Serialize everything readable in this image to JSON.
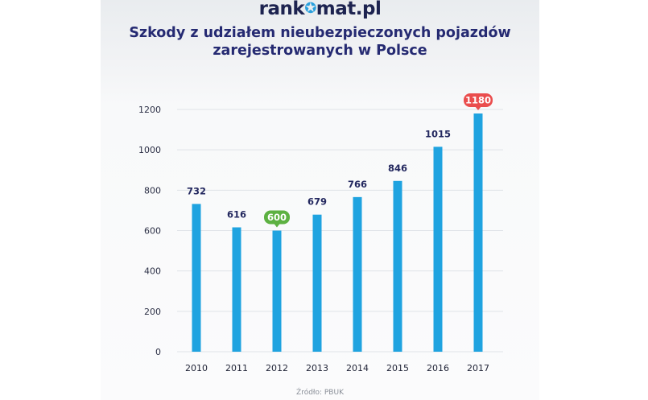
{
  "header": {
    "logo_text_1": "rank",
    "logo_text_2": "mat.pl",
    "title_line_1": "Szkody z udziałem nieubezpieczonych pojazdów",
    "title_line_2": "zarejestrowanych w Polsce"
  },
  "footer": {
    "source": "Źródło: PBUK"
  },
  "colors": {
    "bar": "#1fa3e0",
    "title": "#252a72",
    "min_badge": "#5db142",
    "max_badge": "#ea4d4d"
  },
  "chart_data": {
    "type": "bar",
    "title": "Szkody z udziałem nieubezpieczonych pojazdów zarejestrowanych w Polsce",
    "categories": [
      "2010",
      "2011",
      "2012",
      "2013",
      "2014",
      "2015",
      "2016",
      "2017"
    ],
    "values": [
      732,
      616,
      600,
      679,
      766,
      846,
      1015,
      1180
    ],
    "data_labels": [
      "732",
      "616",
      "600",
      "679",
      "766",
      "846",
      "1015",
      "1180"
    ],
    "highlight": {
      "min_index": 2,
      "max_index": 7
    },
    "y_ticks": [
      0,
      200,
      400,
      600,
      800,
      1000,
      1200
    ],
    "ylim": [
      0,
      1200
    ],
    "xlabel": "",
    "ylabel": "",
    "grid": true,
    "legend": "none"
  }
}
